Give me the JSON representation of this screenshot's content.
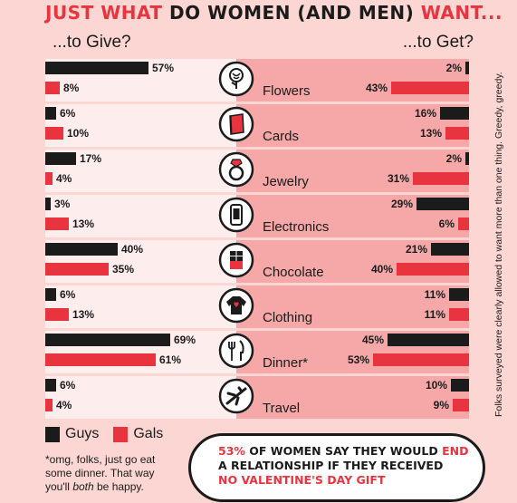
{
  "title": {
    "part1": "JUST WHAT",
    "part2": " DO WOMEN (AND MEN) ",
    "part3": "WANT..."
  },
  "give_label": "...to Give?",
  "get_label": "...to Get?",
  "side_note": "Folks surveyed were clearly allowed to want more than one thing. Greedy, greedy.",
  "legend": {
    "guys": "Guys",
    "gals": "Gals"
  },
  "footnote": {
    "line1": "*omg, folks, just go eat",
    "line2": "some dinner. That way",
    "line3a": "you'll ",
    "line3b": "both",
    "line3c": " be happy."
  },
  "callout": {
    "pct": "53%",
    "text1": " OF WOMEN SAY THEY WOULD ",
    "end": "END",
    "line2": "A RELATIONSHIP IF THEY RECEIVED",
    "line3": "NO VALENTINE'S DAY GIFT"
  },
  "colors": {
    "guys": "#1b1b1b",
    "gals": "#e8343f",
    "background": "#fbd6d2",
    "panel_light": "#fdeeed",
    "panel_dark": "#f6a7a7"
  },
  "chart_data": {
    "type": "bar",
    "categories": [
      "Flowers",
      "Cards",
      "Jewelry",
      "Electronics",
      "Chocolate",
      "Clothing",
      "Dinner*",
      "Travel"
    ],
    "icons": [
      "rose-icon",
      "card-icon",
      "ring-icon",
      "phone-icon",
      "chocolate-icon",
      "sweater-icon",
      "fork-knife-icon",
      "airplane-icon"
    ],
    "series": [
      {
        "name": "Guys",
        "side": "give",
        "values": [
          57,
          6,
          17,
          3,
          40,
          6,
          69,
          6
        ]
      },
      {
        "name": "Gals",
        "side": "give",
        "values": [
          8,
          10,
          4,
          13,
          35,
          13,
          61,
          4
        ]
      },
      {
        "name": "Guys",
        "side": "get",
        "values": [
          2,
          16,
          2,
          29,
          21,
          11,
          45,
          10
        ]
      },
      {
        "name": "Gals",
        "side": "get",
        "values": [
          43,
          13,
          31,
          6,
          40,
          11,
          53,
          9
        ]
      }
    ],
    "value_suffix": "%",
    "xlim": [
      0,
      100
    ]
  }
}
